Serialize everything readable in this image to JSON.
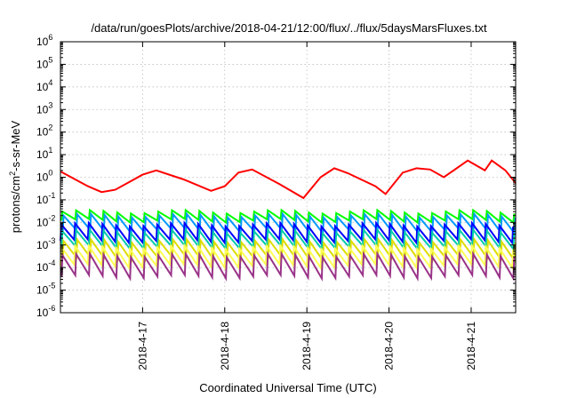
{
  "chart_data": {
    "type": "line",
    "title": "/data/run/goesPlots/archive/2018-04-21/12:00/flux/../flux/5daysMarsFluxes.txt",
    "xlabel": "Coordinated Universal Time (UTC)",
    "ylabel_parts": [
      "protons/cm",
      "2",
      "-s-sr-MeV"
    ],
    "yscale": "log",
    "ylim": [
      1e-06,
      1000000.0
    ],
    "xlim": [
      "2018-04-16 00:00",
      "2018-04-21 13:00"
    ],
    "x_ticks": [
      "2018-4-17",
      "2018-4-18",
      "2018-4-19",
      "2018-4-20",
      "2018-4-21"
    ],
    "y_tick_base": "10",
    "y_tick_exponents": [
      "-6",
      "-5",
      "-4",
      "-3",
      "-2",
      "-1",
      "0",
      "1",
      "2",
      "3",
      "4",
      "5",
      "6"
    ],
    "grid": true,
    "sawtooth_period_hours": 4,
    "series": [
      {
        "color": "#ff0000",
        "kind": "red",
        "points": [
          [
            "2018-04-16 00:00",
            1.8
          ],
          [
            "2018-04-16 08:00",
            0.4
          ],
          [
            "2018-04-16 12:00",
            0.22
          ],
          [
            "2018-04-16 16:00",
            0.28
          ],
          [
            "2018-04-16 20:00",
            0.6
          ],
          [
            "2018-04-17 00:00",
            1.3
          ],
          [
            "2018-04-17 04:00",
            2.0
          ],
          [
            "2018-04-17 12:00",
            0.8
          ],
          [
            "2018-04-17 20:00",
            0.25
          ],
          [
            "2018-04-18 00:00",
            0.4
          ],
          [
            "2018-04-18 04:00",
            1.6
          ],
          [
            "2018-04-18 08:00",
            2.2
          ],
          [
            "2018-04-18 16:00",
            0.5
          ],
          [
            "2018-04-18 23:00",
            0.12
          ],
          [
            "2018-04-19 04:00",
            1.0
          ],
          [
            "2018-04-19 08:00",
            2.5
          ],
          [
            "2018-04-19 12:00",
            1.5
          ],
          [
            "2018-04-19 20:00",
            0.4
          ],
          [
            "2018-04-19 23:00",
            0.18
          ],
          [
            "2018-04-20 04:00",
            1.6
          ],
          [
            "2018-04-20 08:00",
            2.5
          ],
          [
            "2018-04-20 12:00",
            2.2
          ],
          [
            "2018-04-20 16:00",
            1.0
          ],
          [
            "2018-04-20 23:00",
            5.5
          ],
          [
            "2018-04-21 04:00",
            2.0
          ],
          [
            "2018-04-21 06:00",
            5.5
          ],
          [
            "2018-04-21 10:00",
            2.0
          ],
          [
            "2018-04-21 13:00",
            0.55
          ]
        ]
      },
      {
        "color": "#00ff00",
        "kind": "saw",
        "peak": 0.03,
        "trough": 0.012
      },
      {
        "color": "#0099ff",
        "kind": "saw",
        "peak": 0.02,
        "trough": 0.004
      },
      {
        "color": "#0000ff",
        "kind": "saw",
        "peak": 0.008,
        "trough": 0.0015
      },
      {
        "color": "#00ccaa",
        "kind": "saw",
        "peak": 0.004,
        "trough": 0.0008
      },
      {
        "color": "#dddd00",
        "kind": "saw",
        "peak": 0.0015,
        "trough": 0.00025
      },
      {
        "color": "#ffff55",
        "kind": "saw",
        "peak": 0.0008,
        "trough": 0.00012
      },
      {
        "color": "#993388",
        "kind": "saw",
        "peak": 0.00035,
        "trough": 4e-05
      }
    ]
  }
}
